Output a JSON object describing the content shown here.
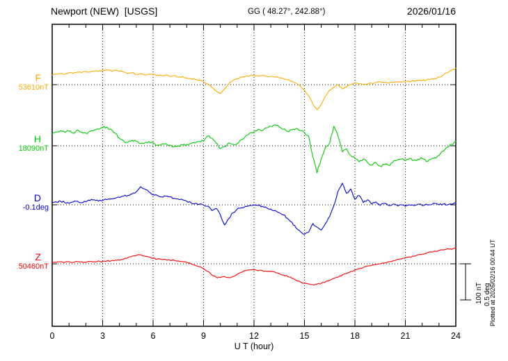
{
  "header": {
    "station": "Newport (NEW)  [USGS]",
    "coords": "GG ( 48.27°, 242.88°)",
    "date": "2026/01/16"
  },
  "axes": {
    "x_label": "U T (hour)",
    "x_ticks": [
      0,
      3,
      6,
      9,
      12,
      15,
      18,
      21,
      24
    ],
    "x_min": 0,
    "x_max": 24,
    "minor_tick_step_hours": 1
  },
  "scale_bar": {
    "nt_label": "100 nT",
    "deg_label": "0.5 deg"
  },
  "plotted_at": "Plotted at 2026/02/16 00:44 UT",
  "chart_data": {
    "type": "line",
    "x_unit": "UT hour",
    "x_start": 0,
    "x_end": 24,
    "x_step": 0.25,
    "note": "offsets are deviations from each trace quiet-level baseline; nT for F/H/Z, degrees for D; one scale division = 100 nT = 0.5 deg",
    "series": [
      {
        "name": "F",
        "label": "F",
        "baseline_label": "53610nT",
        "baseline_value": 53610,
        "unit": "nT",
        "per_division": 100,
        "color": "#ffaa00",
        "offsets": [
          27,
          29,
          31,
          29,
          33,
          31,
          35,
          33,
          37,
          35,
          38,
          37,
          40,
          42,
          38,
          40,
          37,
          35,
          31,
          33,
          29,
          31,
          27,
          29,
          29,
          27,
          25,
          27,
          23,
          25,
          21,
          23,
          19,
          17,
          15,
          12,
          8,
          2,
          -8,
          -17,
          -25,
          -12,
          2,
          12,
          17,
          21,
          23,
          25,
          25,
          23,
          25,
          23,
          23,
          21,
          19,
          17,
          13,
          10,
          4,
          -4,
          -15,
          -31,
          -54,
          -69,
          -54,
          -31,
          -15,
          -8,
          0,
          -12,
          -6,
          0,
          4,
          2,
          0,
          2,
          4,
          6,
          8,
          6,
          4,
          6,
          8,
          8,
          10,
          8,
          10,
          12,
          12,
          13,
          15,
          17,
          21,
          27,
          33,
          40,
          46
        ]
      },
      {
        "name": "H",
        "label": "H",
        "baseline_label": "18090nT",
        "baseline_value": 18090,
        "unit": "nT",
        "per_division": 100,
        "color": "#00cc00",
        "offsets": [
          33,
          38,
          42,
          37,
          40,
          35,
          44,
          38,
          35,
          40,
          44,
          46,
          50,
          52,
          46,
          35,
          21,
          13,
          10,
          15,
          12,
          6,
          8,
          12,
          8,
          2,
          4,
          6,
          2,
          -2,
          0,
          2,
          4,
          6,
          8,
          12,
          13,
          27,
          21,
          8,
          -8,
          -2,
          8,
          4,
          6,
          17,
          27,
          35,
          38,
          46,
          42,
          50,
          54,
          58,
          52,
          46,
          40,
          44,
          48,
          42,
          37,
          27,
          -31,
          -75,
          -35,
          -4,
          8,
          54,
          27,
          -17,
          -8,
          -27,
          -35,
          -44,
          -37,
          -46,
          -54,
          -46,
          -56,
          -52,
          -54,
          -46,
          -40,
          -37,
          -42,
          -35,
          -40,
          -37,
          -35,
          -44,
          -38,
          -33,
          -27,
          -15,
          -4,
          4,
          12
        ]
      },
      {
        "name": "D",
        "label": "D",
        "baseline_label": "-0.1deg",
        "baseline_value": -0.1,
        "unit": "deg",
        "per_division": 0.5,
        "color": "#0000dd",
        "offsets": [
          0.03,
          0.04,
          0.05,
          0.03,
          0.02,
          0.04,
          0.05,
          0.03,
          0.04,
          0.06,
          0.07,
          0.05,
          0.06,
          0.07,
          0.08,
          0.09,
          0.1,
          0.12,
          0.13,
          0.15,
          0.18,
          0.25,
          0.22,
          0.18,
          0.14,
          0.13,
          0.11,
          0.12,
          0.11,
          0.09,
          0.08,
          0.07,
          0.05,
          0.03,
          0.02,
          0.01,
          0.0,
          -0.02,
          -0.08,
          -0.05,
          -0.14,
          -0.28,
          -0.19,
          -0.11,
          -0.06,
          -0.04,
          -0.02,
          -0.01,
          0.0,
          -0.01,
          -0.02,
          -0.04,
          -0.06,
          -0.08,
          -0.11,
          -0.14,
          -0.19,
          -0.24,
          -0.32,
          -0.37,
          -0.41,
          -0.38,
          -0.26,
          -0.31,
          -0.35,
          -0.26,
          -0.16,
          -0.01,
          0.19,
          0.3,
          0.16,
          0.22,
          0.08,
          0.13,
          0.03,
          0.07,
          0.01,
          0.04,
          -0.01,
          0.02,
          -0.01,
          0.01,
          -0.01,
          0.0,
          -0.02,
          0.0,
          -0.01,
          0.01,
          -0.01,
          0.01,
          0.0,
          0.02,
          0.0,
          0.01,
          0.0,
          0.01,
          0.02
        ]
      },
      {
        "name": "Z",
        "label": "Z",
        "baseline_label": "50460nT",
        "baseline_value": 50460,
        "unit": "nT",
        "per_division": 100,
        "color": "#ff0000",
        "offsets": [
          4,
          4,
          6,
          4,
          6,
          4,
          6,
          6,
          4,
          6,
          6,
          8,
          6,
          8,
          8,
          10,
          10,
          13,
          17,
          21,
          23,
          25,
          21,
          19,
          15,
          13,
          12,
          12,
          10,
          10,
          8,
          6,
          4,
          0,
          -4,
          -8,
          -13,
          -21,
          -31,
          -37,
          -38,
          -35,
          -38,
          -35,
          -29,
          -23,
          -19,
          -17,
          -17,
          -19,
          -19,
          -21,
          -21,
          -23,
          -27,
          -31,
          -35,
          -40,
          -46,
          -50,
          -54,
          -56,
          -58,
          -56,
          -54,
          -50,
          -46,
          -40,
          -37,
          -31,
          -27,
          -21,
          -17,
          -13,
          -10,
          -6,
          -4,
          -2,
          0,
          2,
          6,
          8,
          12,
          13,
          17,
          19,
          21,
          25,
          27,
          29,
          33,
          35,
          37,
          38,
          42,
          40,
          44
        ]
      }
    ]
  }
}
